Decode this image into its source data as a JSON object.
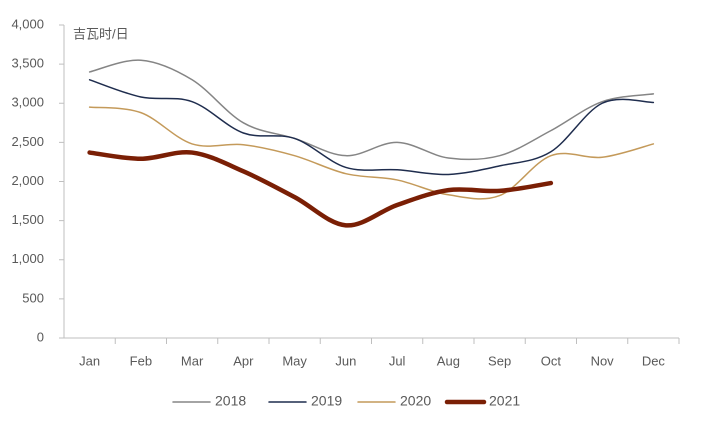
{
  "chart_data": {
    "type": "line",
    "axis_label": "吉瓦时/日",
    "categories": [
      "Jan",
      "Feb",
      "Mar",
      "Apr",
      "May",
      "Jun",
      "Jul",
      "Aug",
      "Sep",
      "Oct",
      "Nov",
      "Dec"
    ],
    "series": [
      {
        "name": "2018",
        "color": "#858585",
        "width": 1.5,
        "values": [
          3400,
          3550,
          3300,
          2750,
          2550,
          2330,
          2500,
          2300,
          2330,
          2650,
          3020,
          3120
        ]
      },
      {
        "name": "2019",
        "color": "#1f2d4e",
        "width": 1.5,
        "values": [
          3300,
          3080,
          3020,
          2620,
          2550,
          2180,
          2150,
          2090,
          2200,
          2380,
          3000,
          3010
        ]
      },
      {
        "name": "2020",
        "color": "#c49a5a",
        "width": 1.5,
        "values": [
          2950,
          2880,
          2480,
          2470,
          2330,
          2100,
          2020,
          1830,
          1820,
          2330,
          2310,
          2480
        ]
      },
      {
        "name": "2021",
        "color": "#7a1f05",
        "width": 4.5,
        "values": [
          2370,
          2290,
          2370,
          2130,
          1800,
          1440,
          1700,
          1890,
          1880,
          1980,
          null,
          null
        ]
      }
    ],
    "ylim": [
      0,
      4000
    ],
    "yticks": [
      0,
      500,
      {
        "value": 1000,
        "label": "1,000"
      },
      {
        "value": 1500,
        "label": "1,500"
      },
      {
        "value": 2000,
        "label": "2,000"
      },
      {
        "value": 2500,
        "label": "2,500"
      },
      {
        "value": 3000,
        "label": "3,000"
      },
      {
        "value": 3500,
        "label": "3,500"
      },
      {
        "value": 4000,
        "label": "4,000"
      }
    ],
    "grid": false,
    "smooth": true,
    "legend": "bottom"
  }
}
